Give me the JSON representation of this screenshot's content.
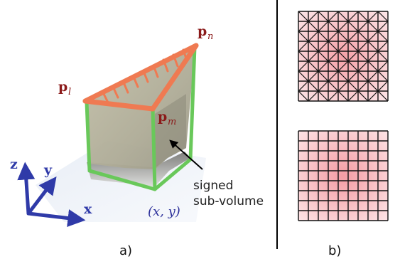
{
  "figure": {
    "panel_a": {
      "caption": "a)",
      "points": {
        "pl_base": "p",
        "pl_sub": "l",
        "pn_base": "p",
        "pn_sub": "n",
        "pm_base": "p",
        "pm_sub": "m"
      },
      "axes": {
        "x": "x",
        "y": "y",
        "z": "z"
      },
      "domain_label": "(x, y)",
      "annotation_line1": "signed",
      "annotation_line2": "sub-volume",
      "colors": {
        "point_label": "#8b1a1a",
        "axis": "#2f3aa8",
        "domain_label": "#2b2f9a",
        "top_edges": "#ef7a52",
        "vertical_edges": "#69c85a",
        "surface": "#b8b59c"
      }
    },
    "panel_b": {
      "caption": "b)",
      "grid_cells": 9,
      "fill_color": "#f59aa2",
      "fill_light": "#fbe1e3"
    }
  }
}
